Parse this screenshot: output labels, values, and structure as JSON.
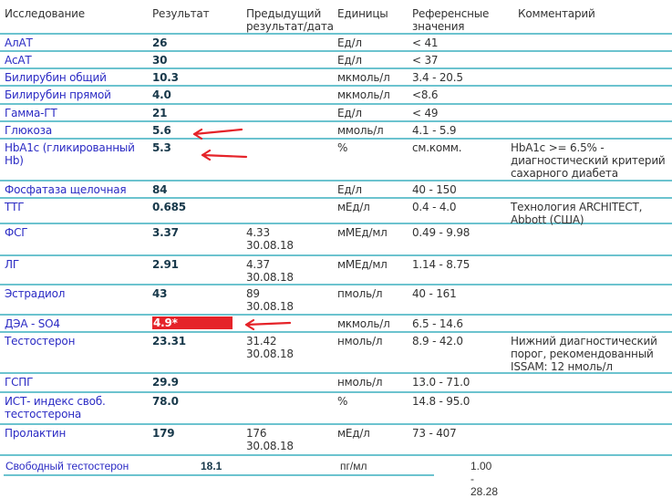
{
  "header": {
    "name": "Исследование",
    "result": "Результат",
    "previous": "Предыдущий\nрезультат/дата",
    "units": "Единицы",
    "reference": "Референсные\nзначения",
    "comment": "Комментарий"
  },
  "rows": [
    {
      "name": "АлАТ",
      "result": "26",
      "previous": "",
      "units": "Ед/л",
      "reference": "< 41",
      "comment": ""
    },
    {
      "name": "АсАТ",
      "result": "30",
      "previous": "",
      "units": "Ед/л",
      "reference": "< 37",
      "comment": ""
    },
    {
      "name": "Билирубин общий",
      "result": "10.3",
      "previous": "",
      "units": "мкмоль/л",
      "reference": "3.4 - 20.5",
      "comment": ""
    },
    {
      "name": "Билирубин прямой",
      "result": "4.0",
      "previous": "",
      "units": "мкмоль/л",
      "reference": "<8.6",
      "comment": ""
    },
    {
      "name": "Гамма-ГТ",
      "result": "21",
      "previous": "",
      "units": "Ед/л",
      "reference": "< 49",
      "comment": ""
    },
    {
      "name": "Глюкоза",
      "result": "5.6",
      "previous": "",
      "units": "ммоль/л",
      "reference": "4.1 - 5.9",
      "comment": "",
      "annotated": true
    },
    {
      "name": "HbA1c (гликированный\nHb)",
      "result": "5.3",
      "previous": "",
      "units": "%",
      "reference": "см.комм.",
      "comment": "HbA1c >= 6.5% -\nдиагностический критерий\nсахарного диабета",
      "annotated": true
    },
    {
      "name": "Фосфатаза щелочная",
      "result": "84",
      "previous": "",
      "units": "Ед/л",
      "reference": "40 - 150",
      "comment": ""
    },
    {
      "name": "ТТГ",
      "result": "0.685",
      "previous": "",
      "units": "мЕд/л",
      "reference": "0.4 - 4.0",
      "comment": "Технология ARCHITECT,\nAbbott (США)"
    },
    {
      "name": "ФСГ",
      "result": "3.37",
      "previous": "4.33\n30.08.18",
      "units": "мМЕд/мл",
      "reference": "0.49 - 9.98",
      "comment": ""
    },
    {
      "name": "ЛГ",
      "result": "2.91",
      "previous": "4.37\n30.08.18",
      "units": "мМЕд/мл",
      "reference": "1.14 - 8.75",
      "comment": ""
    },
    {
      "name": "Эстрадиол",
      "result": "43",
      "previous": "89\n30.08.18",
      "units": "пмоль/л",
      "reference": "40 - 161",
      "comment": ""
    },
    {
      "name": "ДЭА - SO4",
      "result": "4.9*",
      "previous": "",
      "units": "мкмоль/л",
      "reference": "6.5 - 14.6",
      "comment": "",
      "flagged": true,
      "annotated": true
    },
    {
      "name": "Тестостерон",
      "result": "23.31",
      "previous": "31.42\n30.08.18",
      "units": "нмоль/л",
      "reference": "8.9 - 42.0",
      "comment": "Нижний диагностический\nпорог, рекомендованный\nISSAM: 12 нмоль/л"
    },
    {
      "name": "ГСПГ",
      "result": "29.9",
      "previous": "",
      "units": "нмоль/л",
      "reference": "13.0 - 71.0",
      "comment": ""
    },
    {
      "name": "ИСТ- индекс своб.\nтестостерона",
      "result": "78.0",
      "previous": "",
      "units": "%",
      "reference": "14.8 - 95.0",
      "comment": ""
    },
    {
      "name": "Пролактин",
      "result": "179",
      "previous": "176\n30.08.18",
      "units": "мЕд/л",
      "reference": "73 - 407",
      "comment": ""
    }
  ],
  "last_row": {
    "name": "Свободный тестостерон",
    "result": "18.1",
    "units": "пг/мл",
    "reference": "1.00 - 28.28"
  },
  "colors": {
    "flag": "#e52329",
    "annotation_arrow": "#e52329",
    "test_name": "#2b2bc4",
    "divider": "#6cc3cf"
  }
}
